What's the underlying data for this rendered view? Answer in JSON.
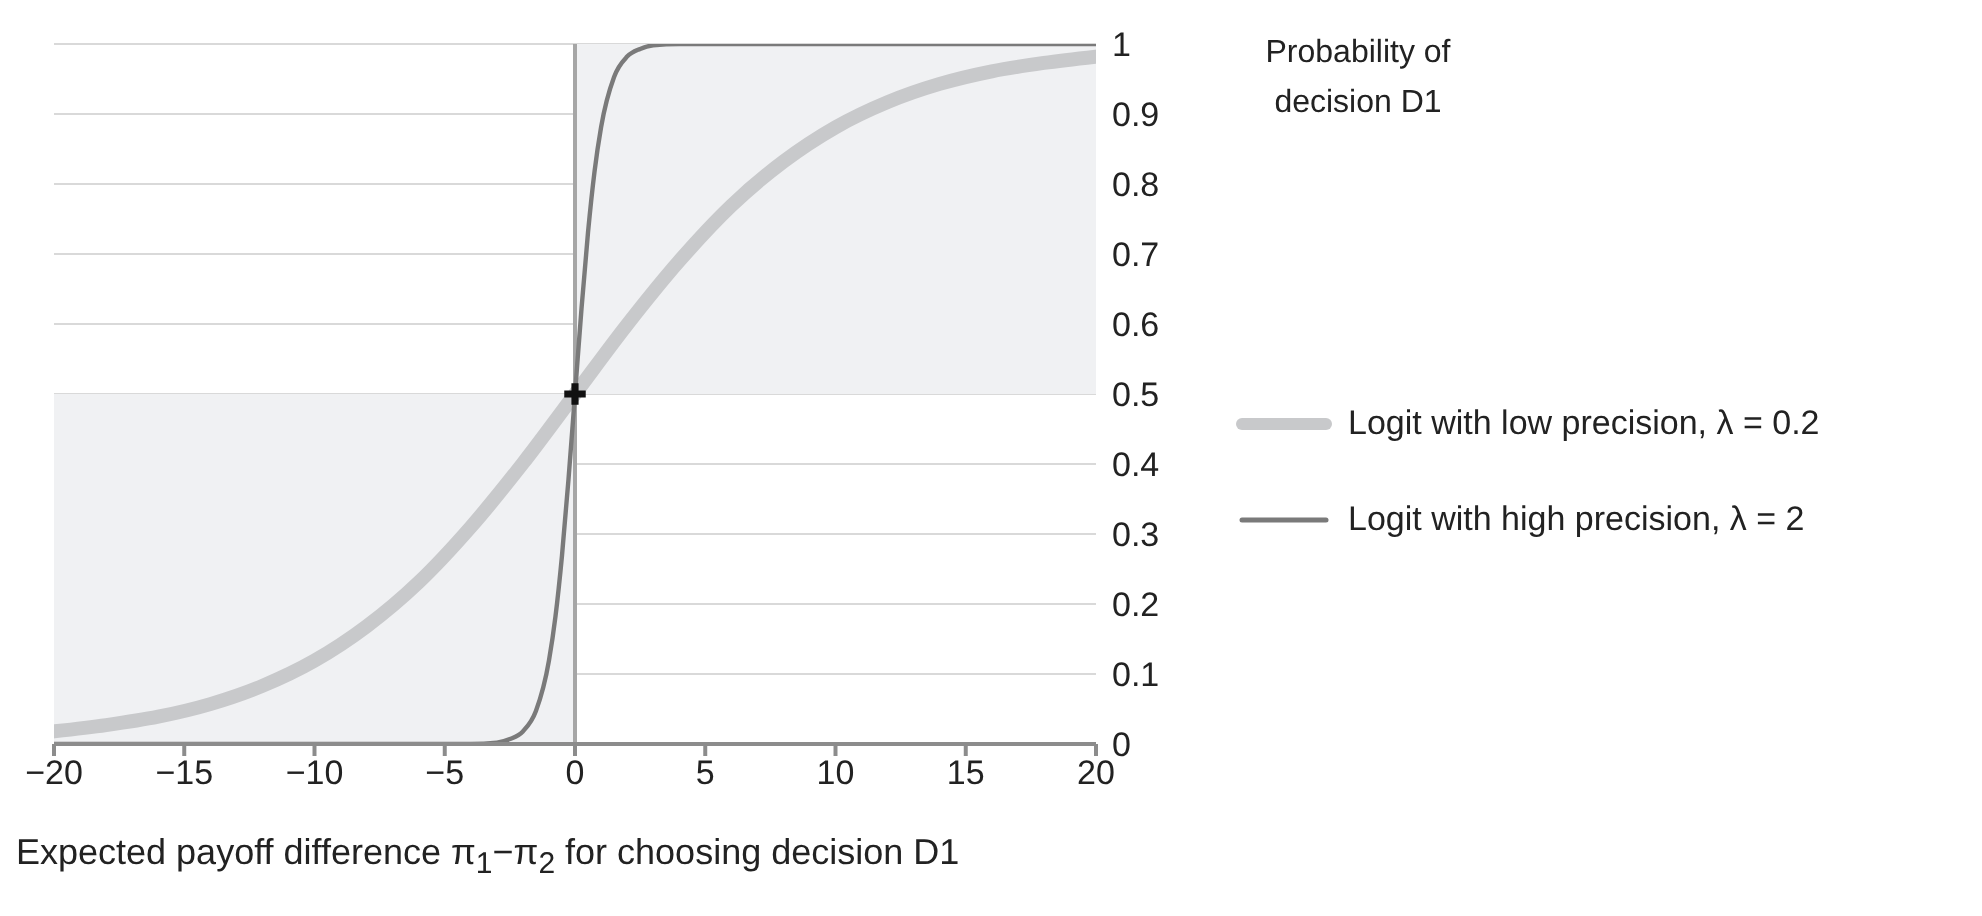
{
  "chart_data": {
    "type": "line",
    "xlabel": "Expected payoff difference π$_{1}$−π$_{2}$ for choosing decision D1",
    "ylabel": "Probability of decision D1",
    "xlim": [
      -20,
      20
    ],
    "xticks": [
      {
        "value": -20,
        "label": "−20"
      },
      {
        "value": -15,
        "label": "−15"
      },
      {
        "value": -10,
        "label": "−10"
      },
      {
        "value": -5,
        "label": "−5"
      },
      0,
      5,
      10,
      15,
      20
    ],
    "ylim": [
      0,
      1
    ],
    "yticks": [
      0,
      0.1,
      0.2,
      0.3,
      0.4,
      0.5,
      0.6,
      0.7,
      0.8,
      0.9,
      1
    ],
    "grid": "y",
    "legend": "right",
    "marker": "none",
    "bands": [
      {
        "axis": "y",
        "from": 0,
        "to": 0.5,
        "color": "#f0f1f3"
      },
      {
        "axis": "y",
        "from": 0.5,
        "to": 1,
        "color": "#f0f1f3"
      }
    ],
    "ref_lines": [
      {
        "axis": "x",
        "value": 0,
        "color": "#a6a6a6"
      }
    ],
    "series": [
      {
        "name": "Logit with low precision, λ = 0.2",
        "color": "#c8c9cb",
        "x": [
          -20,
          -18,
          -16,
          -14,
          -12,
          -10,
          -8,
          -6,
          -4,
          -2,
          0,
          2,
          4,
          6,
          8,
          10,
          12,
          14,
          16,
          18,
          20
        ],
        "values": [
          0.018,
          0.027,
          0.039,
          0.057,
          0.083,
          0.119,
          0.168,
          0.231,
          0.31,
          0.401,
          0.5,
          0.599,
          0.69,
          0.769,
          0.832,
          0.881,
          0.917,
          0.943,
          0.961,
          0.973,
          0.982
        ]
      },
      {
        "name": "Logit with high precision, λ = 2",
        "color": "#7a7a7a",
        "x": [
          -20,
          -6,
          -4,
          -3,
          -2.5,
          -2,
          -1.5,
          -1,
          -0.75,
          -0.5,
          -0.25,
          0,
          0.25,
          0.5,
          0.75,
          1,
          1.5,
          2,
          2.5,
          3,
          4,
          6,
          20
        ],
        "values": [
          0,
          0,
          0,
          0.002,
          0.007,
          0.018,
          0.047,
          0.119,
          0.182,
          0.269,
          0.378,
          0.5,
          0.622,
          0.731,
          0.818,
          0.881,
          0.953,
          0.982,
          0.993,
          0.998,
          1,
          1,
          1
        ]
      },
      {
        "type": "scatter",
        "marker": "cross",
        "color": "#111111",
        "x": [
          0
        ],
        "values": [
          0.5
        ]
      }
    ]
  }
}
